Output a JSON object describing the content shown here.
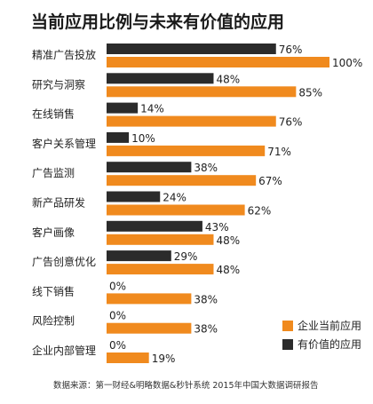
{
  "chart_data": {
    "type": "bar",
    "title": "当前应用比例与未来有价值的应用",
    "categories": [
      "精准广告投放",
      "研究与洞察",
      "在线销售",
      "客户关系管理",
      "广告监测",
      "新产品研发",
      "客户画像",
      "广告创意优化",
      "线下销售",
      "风险控制",
      "企业内部管理"
    ],
    "series": [
      {
        "name": "有价值的应用",
        "color": "#2b2b2b",
        "values": [
          76,
          48,
          14,
          10,
          38,
          24,
          43,
          29,
          0,
          0,
          0
        ]
      },
      {
        "name": "企业当前应用",
        "color": "#f08a1e",
        "values": [
          100,
          85,
          76,
          71,
          67,
          62,
          48,
          48,
          38,
          38,
          19
        ]
      }
    ],
    "value_suffix": "%",
    "xlim": [
      0,
      100
    ],
    "grid": false,
    "legend_position": "bottom-right",
    "legend_order": [
      "企业当前应用",
      "有价值的应用"
    ],
    "source": "数据来源：第一财经&明略数据&秒针系统 2015年中国大数据调研报告"
  }
}
